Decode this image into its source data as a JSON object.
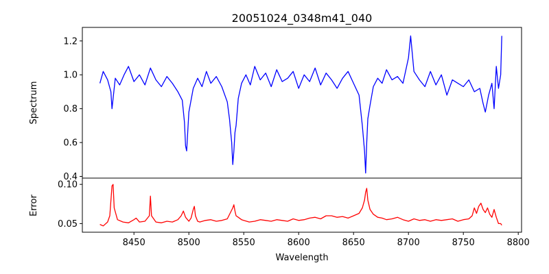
{
  "chart_data": {
    "type": "line",
    "title": "20051024_0348m41_040",
    "xlabel": "Wavelength",
    "xlim": [
      8403,
      8803
    ],
    "xticks": [
      8450,
      8500,
      8550,
      8600,
      8650,
      8700,
      8750,
      8800
    ],
    "grid": false,
    "panels": [
      {
        "name": "spectrum",
        "ylabel": "Spectrum",
        "ylim": [
          0.39,
          1.28
        ],
        "yticks": [
          0.4,
          0.6,
          0.8,
          1.0,
          1.2
        ],
        "ytick_labels": [
          "0.4",
          "0.6",
          "0.8",
          "1.0",
          "1.2"
        ],
        "color": "#0000ff",
        "x": [
          8419,
          8422,
          8426,
          8429,
          8430,
          8433,
          8437,
          8441,
          8445,
          8450,
          8455,
          8460,
          8465,
          8470,
          8475,
          8480,
          8485,
          8490,
          8494,
          8496,
          8497,
          8498,
          8500,
          8504,
          8508,
          8512,
          8516,
          8520,
          8525,
          8530,
          8535,
          8537,
          8539,
          8540,
          8541,
          8542,
          8543,
          8545,
          8548,
          8552,
          8556,
          8560,
          8565,
          8570,
          8575,
          8580,
          8585,
          8590,
          8595,
          8600,
          8605,
          8610,
          8615,
          8620,
          8625,
          8630,
          8635,
          8640,
          8645,
          8650,
          8655,
          8658,
          8660,
          8661,
          8662,
          8663,
          8665,
          8668,
          8672,
          8676,
          8680,
          8685,
          8690,
          8695,
          8700,
          8702,
          8705,
          8710,
          8715,
          8720,
          8725,
          8730,
          8735,
          8740,
          8745,
          8750,
          8755,
          8760,
          8765,
          8768,
          8770,
          8773,
          8776,
          8778,
          8780,
          8782,
          8784,
          8785
        ],
        "y": [
          0.95,
          1.02,
          0.97,
          0.9,
          0.8,
          0.98,
          0.94,
          1.0,
          1.05,
          0.96,
          1.0,
          0.94,
          1.04,
          0.97,
          0.93,
          0.99,
          0.95,
          0.9,
          0.85,
          0.72,
          0.58,
          0.55,
          0.78,
          0.92,
          0.98,
          0.93,
          1.02,
          0.95,
          0.99,
          0.93,
          0.84,
          0.74,
          0.6,
          0.47,
          0.55,
          0.66,
          0.7,
          0.86,
          0.95,
          1.0,
          0.94,
          1.05,
          0.97,
          1.01,
          0.93,
          1.03,
          0.96,
          0.98,
          1.02,
          0.92,
          1.0,
          0.96,
          1.04,
          0.94,
          1.01,
          0.97,
          0.92,
          0.98,
          1.02,
          0.95,
          0.88,
          0.7,
          0.55,
          0.42,
          0.6,
          0.74,
          0.82,
          0.93,
          0.98,
          0.95,
          1.03,
          0.97,
          0.99,
          0.95,
          1.1,
          1.23,
          1.02,
          0.97,
          0.93,
          1.02,
          0.94,
          1.0,
          0.88,
          0.97,
          0.95,
          0.93,
          0.97,
          0.9,
          0.92,
          0.83,
          0.78,
          0.88,
          0.95,
          0.8,
          1.05,
          0.92,
          1.0,
          1.23
        ]
      },
      {
        "name": "error",
        "ylabel": "Error",
        "ylim": [
          0.039,
          0.108
        ],
        "yticks": [
          0.05,
          0.1
        ],
        "ytick_labels": [
          "0.05",
          "0.10"
        ],
        "color": "#ff0000",
        "x": [
          8419,
          8422,
          8426,
          8428,
          8430,
          8431,
          8432,
          8435,
          8440,
          8445,
          8450,
          8452,
          8455,
          8460,
          8464,
          8465,
          8466,
          8470,
          8475,
          8480,
          8485,
          8490,
          8493,
          8495,
          8497,
          8500,
          8502,
          8504,
          8505,
          8506,
          8508,
          8510,
          8515,
          8520,
          8525,
          8530,
          8535,
          8540,
          8541,
          8542,
          8543,
          8545,
          8548,
          8550,
          8555,
          8560,
          8565,
          8570,
          8575,
          8580,
          8585,
          8590,
          8595,
          8600,
          8605,
          8610,
          8615,
          8620,
          8625,
          8630,
          8635,
          8640,
          8645,
          8650,
          8655,
          8658,
          8660,
          8661,
          8662,
          8663,
          8665,
          8668,
          8672,
          8676,
          8680,
          8685,
          8690,
          8695,
          8700,
          8705,
          8710,
          8715,
          8720,
          8725,
          8730,
          8735,
          8740,
          8745,
          8750,
          8755,
          8758,
          8760,
          8762,
          8764,
          8766,
          8768,
          8770,
          8772,
          8774,
          8776,
          8778,
          8780,
          8782,
          8784,
          8785
        ],
        "y": [
          0.049,
          0.047,
          0.052,
          0.06,
          0.098,
          0.1,
          0.07,
          0.055,
          0.052,
          0.051,
          0.055,
          0.057,
          0.052,
          0.053,
          0.06,
          0.085,
          0.06,
          0.052,
          0.051,
          0.053,
          0.052,
          0.055,
          0.06,
          0.066,
          0.058,
          0.053,
          0.057,
          0.068,
          0.072,
          0.06,
          0.053,
          0.052,
          0.054,
          0.055,
          0.053,
          0.054,
          0.056,
          0.07,
          0.074,
          0.066,
          0.06,
          0.058,
          0.055,
          0.054,
          0.052,
          0.053,
          0.055,
          0.054,
          0.053,
          0.055,
          0.054,
          0.053,
          0.056,
          0.054,
          0.055,
          0.057,
          0.058,
          0.056,
          0.06,
          0.06,
          0.058,
          0.059,
          0.057,
          0.06,
          0.063,
          0.07,
          0.08,
          0.09,
          0.095,
          0.08,
          0.068,
          0.062,
          0.058,
          0.057,
          0.055,
          0.056,
          0.058,
          0.055,
          0.053,
          0.056,
          0.054,
          0.055,
          0.053,
          0.055,
          0.054,
          0.055,
          0.056,
          0.053,
          0.055,
          0.056,
          0.06,
          0.07,
          0.063,
          0.072,
          0.076,
          0.068,
          0.064,
          0.07,
          0.062,
          0.058,
          0.068,
          0.058,
          0.05,
          0.05,
          0.048
        ]
      }
    ]
  }
}
